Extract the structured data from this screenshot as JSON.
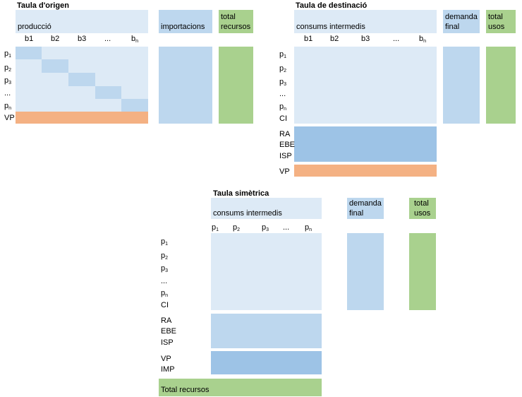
{
  "origin": {
    "title": "Taula d'origen",
    "production": "producció",
    "imports": "importacions",
    "total1": "total",
    "total2": "recursos",
    "cols": [
      {
        "base": "b1",
        "sub": ""
      },
      {
        "base": "b2",
        "sub": ""
      },
      {
        "base": "b3",
        "sub": ""
      },
      {
        "base": "...",
        "sub": ""
      },
      {
        "base": "b",
        "sub": "n"
      }
    ],
    "rows": [
      {
        "base": "p",
        "sub": "1"
      },
      {
        "base": "p",
        "sub": "2"
      },
      {
        "base": "p",
        "sub": "3"
      },
      {
        "base": "...",
        "sub": ""
      },
      {
        "base": "p",
        "sub": "n"
      }
    ],
    "vp": "VP"
  },
  "destination": {
    "title": "Taula de destinació",
    "intermediate": "consums intermedis",
    "demand1": "demanda",
    "demand2": "final",
    "total1": "total",
    "total2": "usos",
    "cols": [
      {
        "base": "b1",
        "sub": ""
      },
      {
        "base": "b2",
        "sub": ""
      },
      {
        "base": "b3",
        "sub": ""
      },
      {
        "base": "...",
        "sub": ""
      },
      {
        "base": "b",
        "sub": "n"
      }
    ],
    "rows": [
      {
        "base": "p",
        "sub": "1"
      },
      {
        "base": "p",
        "sub": "2"
      },
      {
        "base": "p",
        "sub": "3"
      },
      {
        "base": "...",
        "sub": ""
      },
      {
        "base": "p",
        "sub": "n"
      },
      {
        "base": "CI",
        "sub": ""
      }
    ],
    "va_rows": [
      "RA",
      "EBE",
      "ISP"
    ],
    "vp": "VP"
  },
  "symmetric": {
    "title": "Taula simètrica",
    "intermediate": "consums intermedis",
    "demand1": "demanda",
    "demand2": "final",
    "total1": "total",
    "total2": "usos",
    "cols": [
      {
        "base": "p",
        "sub": "1"
      },
      {
        "base": "p",
        "sub": "2"
      },
      {
        "base": "p",
        "sub": "3"
      },
      {
        "base": "...",
        "sub": ""
      },
      {
        "base": "p",
        "sub": "n"
      }
    ],
    "rows": [
      {
        "base": "p",
        "sub": "1"
      },
      {
        "base": "p",
        "sub": "2"
      },
      {
        "base": "p",
        "sub": "3"
      },
      {
        "base": "...",
        "sub": ""
      },
      {
        "base": "p",
        "sub": "n"
      },
      {
        "base": "CI",
        "sub": ""
      }
    ],
    "va_rows": [
      "RA",
      "EBE",
      "ISP"
    ],
    "vp_rows": [
      "VP",
      "IMP"
    ],
    "total_resources": "Total recursos"
  },
  "colors": {
    "light_blue": "#ddeaf6",
    "medium_blue": "#bdd7ee",
    "dark_blue": "#9dc3e6",
    "green": "#a9d18e",
    "orange": "#f4b183"
  }
}
